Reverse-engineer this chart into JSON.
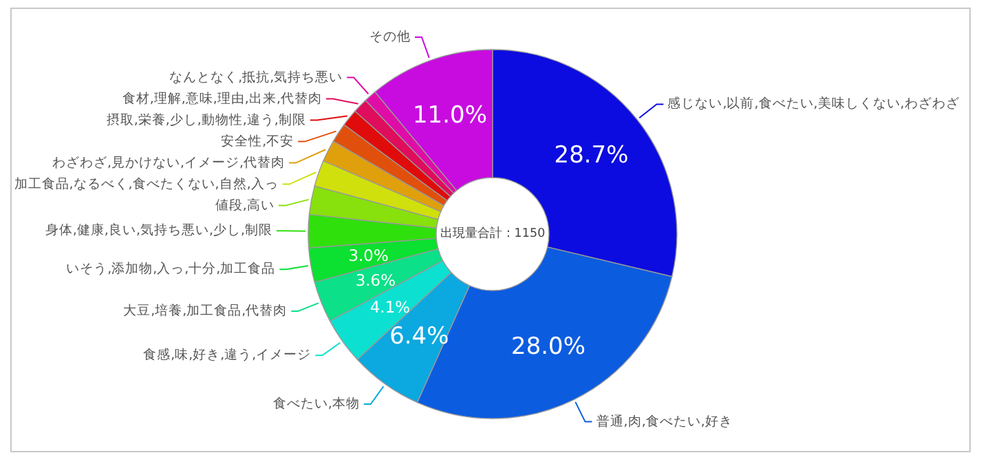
{
  "chart_data": {
    "type": "donut",
    "annotations": [
      "出現量合計：1150"
    ],
    "categories": [
      "感じない,以前,食べたい,美味しくない,わざわざ",
      "普通,肉,食べたい,好き",
      "食べたい,本物",
      "食感,味,好き,違う,イメージ",
      "大豆,培養,加工食品,代替肉",
      "いそう,添加物,入っ,十分,加工食品",
      "身体,健康,良い,気持ち悪い,少し,制限",
      "値段,高い",
      "加工食品,なるべく,食べたくない,自然,入っ",
      "わざわざ,見かけない,イメージ,代替肉",
      "安全性,不安",
      "摂取,栄養,少し,動物性,違う,制限",
      "食材,理解,意味,理由,出来,代替肉",
      "なんとなく,抵抗,気持ち悪い",
      "その他"
    ],
    "values": [
      28.7,
      28.0,
      6.4,
      4.1,
      3.6,
      3.0,
      2.9,
      2.5,
      2.3,
      1.9,
      1.7,
      1.5,
      1.3,
      1.1,
      11.0
    ],
    "value_labels": [
      "28.7%",
      "28.0%",
      "6.4%",
      "4.1%",
      "3.6%",
      "3.0%",
      null,
      null,
      null,
      null,
      null,
      null,
      null,
      null,
      "11.0%"
    ],
    "colors": [
      "#0c0ce0",
      "#0c5ce0",
      "#0ca8e0",
      "#0ce0d0",
      "#0ce088",
      "#0ce030",
      "#30e00c",
      "#88e00c",
      "#d0e00c",
      "#e0a00c",
      "#e0500c",
      "#e00c0c",
      "#e00c5c",
      "#e00ca8",
      "#c80ce0"
    ],
    "legend": false
  }
}
